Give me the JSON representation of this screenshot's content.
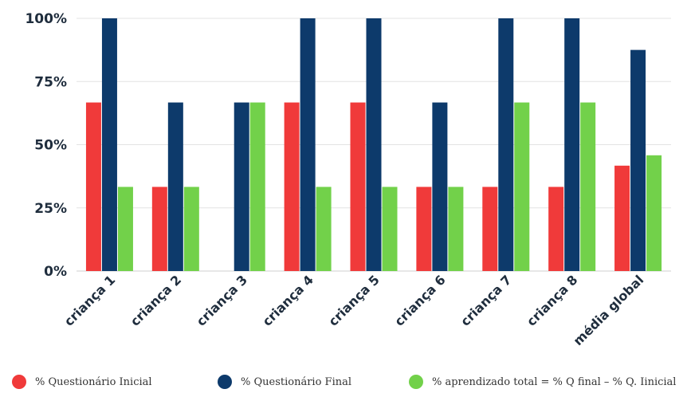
{
  "chart_data": {
    "type": "bar",
    "categories": [
      "criança 1",
      "criança 2",
      "criança 3",
      "criança 4",
      "criança 5",
      "criança 6",
      "criança 7",
      "criança 8",
      "média global"
    ],
    "series": [
      {
        "name": "% Questionário Inicial",
        "color": "#f03a3a",
        "values": [
          66.7,
          33.3,
          0,
          66.7,
          66.7,
          33.3,
          33.3,
          33.3,
          41.7
        ]
      },
      {
        "name": "% Questionário Final",
        "color": "#0d3a6b",
        "values": [
          100,
          66.7,
          66.7,
          100,
          100,
          66.7,
          100,
          100,
          87.5
        ]
      },
      {
        "name": "% aprendizado total = % Q final – % Q. Iinicial",
        "color": "#72d14a",
        "values": [
          33.3,
          33.3,
          66.7,
          33.3,
          33.3,
          33.3,
          66.7,
          66.7,
          45.8
        ]
      }
    ],
    "yticks": [
      "0%",
      "25%",
      "50%",
      "75%",
      "100%"
    ],
    "ylim": [
      0,
      100
    ],
    "grid": true,
    "legend_position": "bottom"
  }
}
